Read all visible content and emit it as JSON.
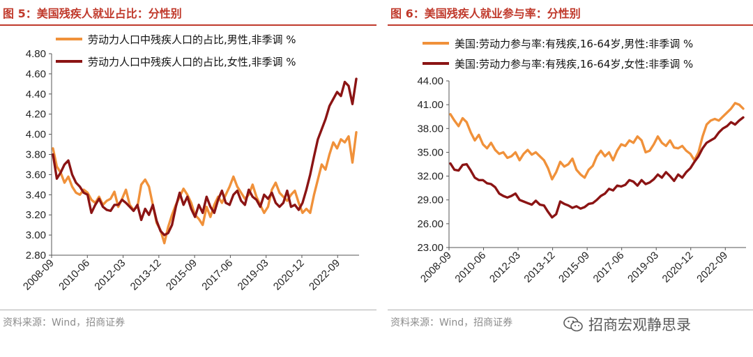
{
  "figures": [
    {
      "title": "图 5：美国残疾人就业占比：分性别",
      "source": "资料来源：Wind，招商证券"
    },
    {
      "title": "图 6：美国残疾人就业参与率：分性别",
      "source": "资料来源：Wind，招商证券"
    }
  ],
  "watermark": {
    "text": "招商宏观静思录",
    "icon": "wechat-icon"
  },
  "chart_data": [
    {
      "type": "line",
      "title": "美国残疾人就业占比：分性别",
      "xlabel": "",
      "ylabel": "",
      "ylim": [
        2.8,
        4.8
      ],
      "yticks": [
        "2.80",
        "3.00",
        "3.20",
        "3.40",
        "3.60",
        "3.80",
        "4.00",
        "4.20",
        "4.40",
        "4.60",
        "4.80"
      ],
      "xticks": [
        "2008-09",
        "2010-06",
        "2012-03",
        "2013-12",
        "2015-09",
        "2017-06",
        "2019-03",
        "2020-12",
        "2022-09"
      ],
      "legend_position": "top-left",
      "series": [
        {
          "name": "劳动力人口中残疾人口的占比,男性,非季调 %",
          "color": "#f0913a",
          "values": [
            3.86,
            3.68,
            3.62,
            3.52,
            3.58,
            3.48,
            3.42,
            3.4,
            3.45,
            3.42,
            3.35,
            3.32,
            3.38,
            3.3,
            3.34,
            3.36,
            3.43,
            3.28,
            3.36,
            3.45,
            3.3,
            3.25,
            3.28,
            3.5,
            3.55,
            3.48,
            3.3,
            3.12,
            3.05,
            2.92,
            3.08,
            3.2,
            3.3,
            3.38,
            3.46,
            3.4,
            3.32,
            3.2,
            3.16,
            3.1,
            3.28,
            3.18,
            3.3,
            3.38,
            3.32,
            3.4,
            3.48,
            3.58,
            3.48,
            3.42,
            3.36,
            3.4,
            3.5,
            3.38,
            3.3,
            3.22,
            3.28,
            3.45,
            3.52,
            3.42,
            3.38,
            3.34,
            3.4,
            3.44,
            3.32,
            3.22,
            3.26,
            3.22,
            3.4,
            3.55,
            3.7,
            3.65,
            3.8,
            3.92,
            3.86,
            3.95,
            3.92,
            3.98,
            3.72,
            4.02
          ]
        },
        {
          "name": "劳动力人口中残疾人口的占比,女性,非季调 %",
          "color": "#8b1414",
          "values": [
            3.8,
            3.56,
            3.62,
            3.7,
            3.74,
            3.6,
            3.52,
            3.48,
            3.42,
            3.4,
            3.22,
            3.3,
            3.36,
            3.28,
            3.25,
            3.24,
            3.3,
            3.3,
            3.35,
            3.32,
            3.28,
            3.24,
            3.3,
            3.15,
            3.26,
            3.2,
            3.3,
            3.14,
            3.04,
            3.0,
            3.02,
            3.1,
            3.28,
            3.42,
            3.3,
            3.38,
            3.26,
            3.18,
            3.3,
            3.22,
            3.38,
            3.28,
            3.22,
            3.35,
            3.44,
            3.32,
            3.3,
            3.4,
            3.44,
            3.34,
            3.3,
            3.45,
            3.38,
            3.35,
            3.28,
            3.4,
            3.36,
            3.42,
            3.32,
            3.28,
            3.32,
            3.44,
            3.28,
            3.3,
            3.25,
            3.32,
            3.45,
            3.6,
            3.78,
            3.95,
            4.05,
            4.15,
            4.28,
            4.35,
            4.42,
            4.38,
            4.52,
            4.48,
            4.3,
            4.55
          ]
        }
      ]
    },
    {
      "type": "line",
      "title": "美国残疾人就业参与率：分性别",
      "xlabel": "",
      "ylabel": "",
      "ylim": [
        23.0,
        44.0
      ],
      "yticks": [
        "23.00",
        "26.00",
        "29.00",
        "32.00",
        "35.00",
        "38.00",
        "41.00",
        "44.00"
      ],
      "xticks": [
        "2008-09",
        "2010-06",
        "2012-03",
        "2013-12",
        "2015-09",
        "2017-06",
        "2019-03",
        "2020-12",
        "2022-09"
      ],
      "legend_position": "top-left",
      "series": [
        {
          "name": "美国:劳动力参与率:有残疾,16-64岁,男性:非季调 %",
          "color": "#f0913a",
          "values": [
            39.8,
            39.0,
            38.3,
            39.3,
            38.8,
            37.5,
            36.5,
            37.2,
            36.0,
            35.5,
            36.2,
            35.3,
            34.8,
            35.0,
            34.3,
            34.5,
            35.0,
            34.0,
            34.8,
            35.3,
            34.7,
            35.0,
            34.5,
            34.0,
            33.0,
            31.6,
            32.5,
            33.8,
            33.2,
            33.5,
            34.2,
            32.8,
            32.2,
            31.8,
            32.8,
            33.3,
            34.5,
            35.2,
            34.5,
            35.0,
            34.0,
            35.2,
            36.0,
            35.8,
            36.5,
            36.2,
            37.0,
            36.5,
            35.0,
            35.2,
            36.0,
            37.0,
            36.2,
            35.8,
            36.5,
            35.6,
            35.5,
            35.8,
            35.2,
            34.8,
            34.0,
            35.0,
            37.0,
            38.5,
            39.0,
            39.2,
            39.0,
            39.5,
            40.0,
            40.5,
            41.2,
            41.0,
            40.5
          ]
        },
        {
          "name": "美国:劳动力参与率:有残疾,16-64岁,女性:非季调 %",
          "color": "#8b1414",
          "values": [
            33.6,
            32.8,
            32.7,
            33.4,
            33.5,
            32.7,
            31.8,
            31.5,
            31.5,
            31.1,
            31.0,
            30.6,
            29.8,
            29.5,
            29.3,
            29.5,
            29.8,
            29.0,
            28.8,
            28.6,
            28.4,
            28.9,
            28.4,
            28.3,
            27.5,
            26.8,
            27.2,
            28.8,
            28.5,
            28.3,
            28.0,
            28.2,
            27.9,
            28.1,
            28.5,
            28.6,
            29.0,
            29.5,
            29.8,
            30.4,
            30.2,
            30.8,
            30.7,
            30.9,
            31.5,
            31.3,
            30.8,
            31.5,
            31.0,
            31.2,
            31.6,
            32.2,
            31.8,
            32.5,
            32.0,
            31.4,
            32.2,
            31.8,
            32.5,
            33.0,
            33.8,
            34.5,
            35.5,
            36.2,
            36.5,
            36.8,
            37.5,
            38.0,
            38.3,
            38.8,
            38.5,
            39.0,
            39.4
          ]
        }
      ]
    }
  ]
}
